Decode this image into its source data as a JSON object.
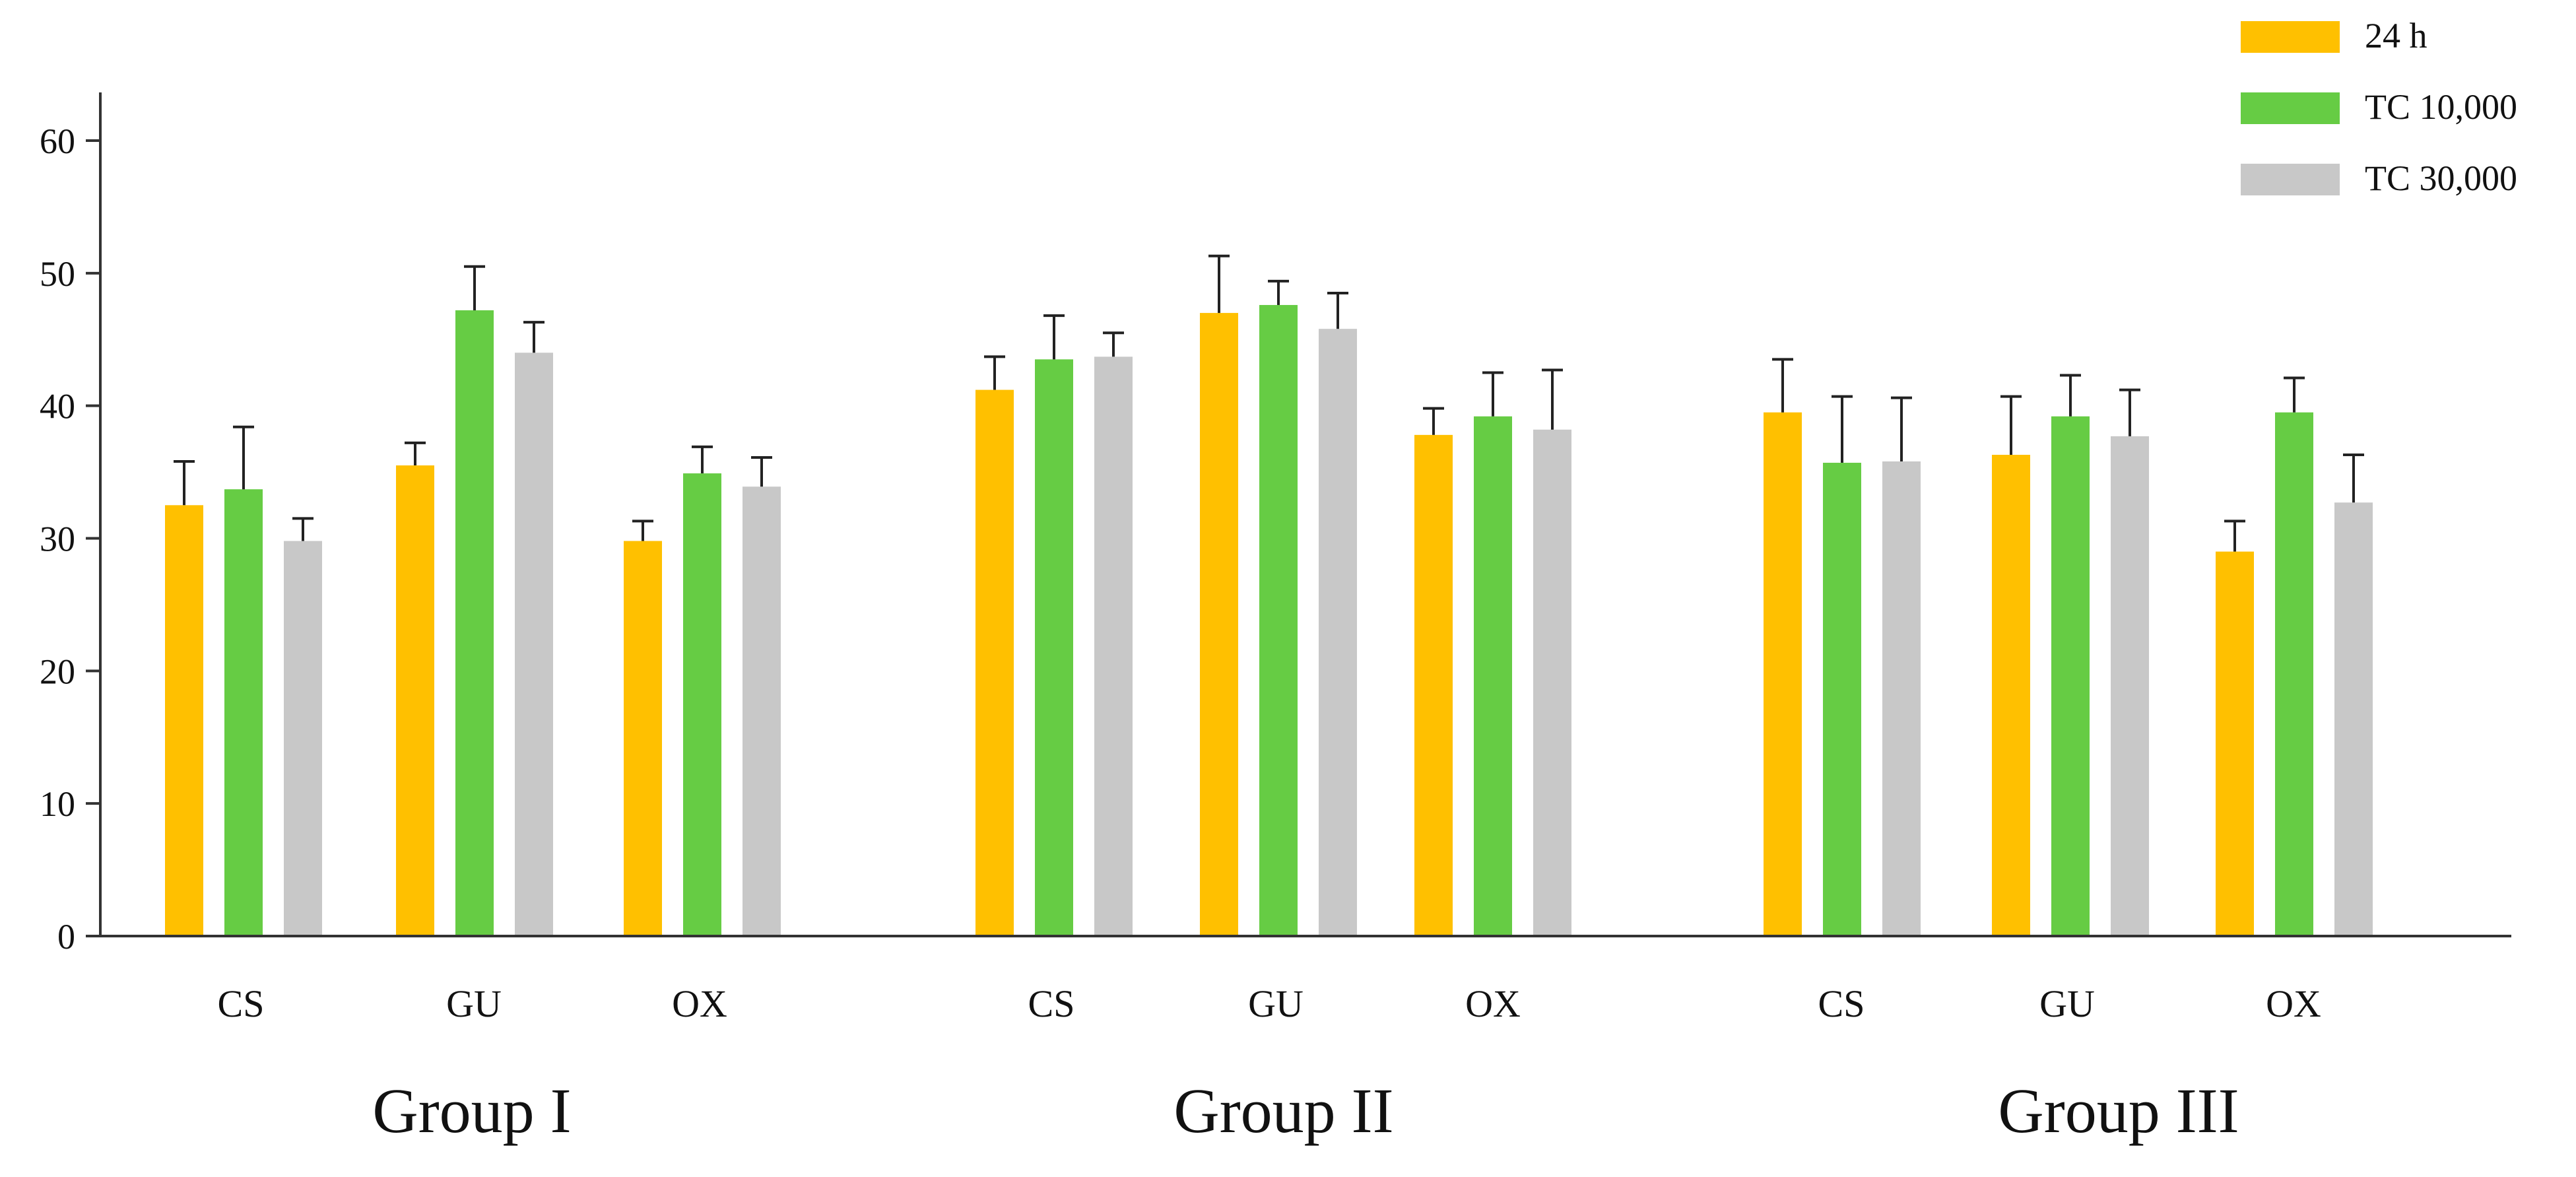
{
  "chart_data": {
    "type": "bar",
    "title": "",
    "xlabel": "",
    "ylabel": "",
    "ylim": [
      0,
      60
    ],
    "yticks": [
      0,
      10,
      20,
      30,
      40,
      50,
      60
    ],
    "groups": [
      {
        "label": "Group I",
        "categories": [
          "CS",
          "GU",
          "OX"
        ]
      },
      {
        "label": "Group II",
        "categories": [
          "CS",
          "GU",
          "OX"
        ]
      },
      {
        "label": "Group III",
        "categories": [
          "CS",
          "GU",
          "OX"
        ]
      }
    ],
    "series": [
      {
        "name": "24 h",
        "color": "#FFC000",
        "values": [
          32.5,
          35.5,
          29.8,
          41.2,
          47.0,
          37.8,
          39.5,
          36.3,
          29.0
        ],
        "errors": [
          3.3,
          1.7,
          1.5,
          2.5,
          4.3,
          2.0,
          4.0,
          4.4,
          2.3
        ]
      },
      {
        "name": "TC 10,000",
        "color": "#66CC44",
        "values": [
          33.7,
          47.2,
          34.9,
          43.5,
          47.6,
          39.2,
          35.7,
          39.2,
          39.5
        ],
        "errors": [
          4.7,
          3.3,
          2.0,
          3.3,
          1.8,
          3.3,
          5.0,
          3.1,
          2.6
        ]
      },
      {
        "name": "TC 30,000",
        "color": "#C8C8C8",
        "values": [
          29.8,
          44.0,
          33.9,
          43.7,
          45.8,
          38.2,
          35.8,
          37.7,
          32.7
        ],
        "errors": [
          1.7,
          2.3,
          2.2,
          1.8,
          2.7,
          4.5,
          4.8,
          3.5,
          3.6
        ]
      }
    ],
    "legend": "top-right"
  }
}
